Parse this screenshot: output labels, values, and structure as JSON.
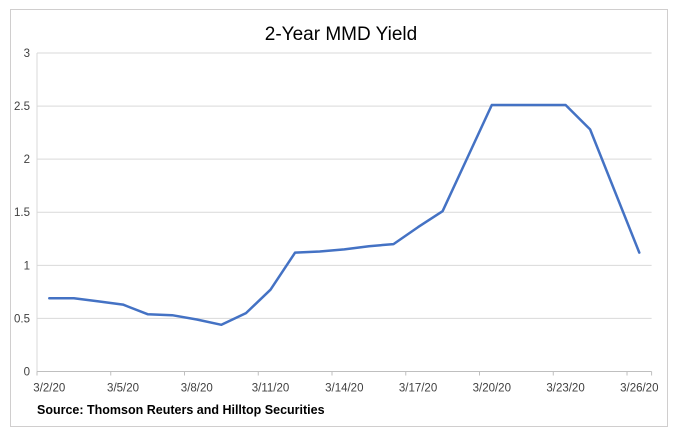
{
  "chart": {
    "title": "2-Year MMD Yield",
    "source_note": "Source: Thomson Reuters and Hilltop Securities"
  },
  "chart_data": {
    "type": "line",
    "title": "2-Year MMD Yield",
    "x": [
      "3/2/20",
      "3/3/20",
      "3/4/20",
      "3/5/20",
      "3/6/20",
      "3/7/20",
      "3/8/20",
      "3/9/20",
      "3/10/20",
      "3/11/20",
      "3/12/20",
      "3/13/20",
      "3/14/20",
      "3/15/20",
      "3/16/20",
      "3/17/20",
      "3/18/20",
      "3/19/20",
      "3/20/20",
      "3/21/20",
      "3/22/20",
      "3/23/20",
      "3/24/20",
      "3/25/20",
      "3/26/20"
    ],
    "values": [
      0.69,
      0.69,
      0.66,
      0.63,
      0.54,
      0.53,
      0.49,
      0.44,
      0.55,
      0.77,
      1.12,
      1.13,
      1.15,
      1.18,
      1.2,
      1.36,
      1.51,
      2.01,
      2.51,
      2.51,
      2.51,
      2.51,
      2.28,
      1.7,
      1.12
    ],
    "x_tick_labels": [
      "3/2/20",
      "3/5/20",
      "3/8/20",
      "3/11/20",
      "3/14/20",
      "3/17/20",
      "3/20/20",
      "3/23/20",
      "3/26/20"
    ],
    "x_tick_every": 3,
    "y_ticks": [
      0,
      0.5,
      1,
      1.5,
      2,
      2.5,
      3
    ],
    "y_tick_labels": [
      "0",
      "0.5",
      "1",
      "1.5",
      "2",
      "2.5",
      "3"
    ],
    "ylim": [
      0,
      3
    ],
    "xlabel": "",
    "ylabel": "",
    "legend": "none",
    "grid": "horizontal",
    "line_color": "#4472C4",
    "gridline_color": "#D9D9D9",
    "axis_color": "#BFBFBF",
    "label_color": "#404040",
    "frame_color": "#D0CECE",
    "source": "Source: Thomson Reuters and Hilltop Securities"
  }
}
